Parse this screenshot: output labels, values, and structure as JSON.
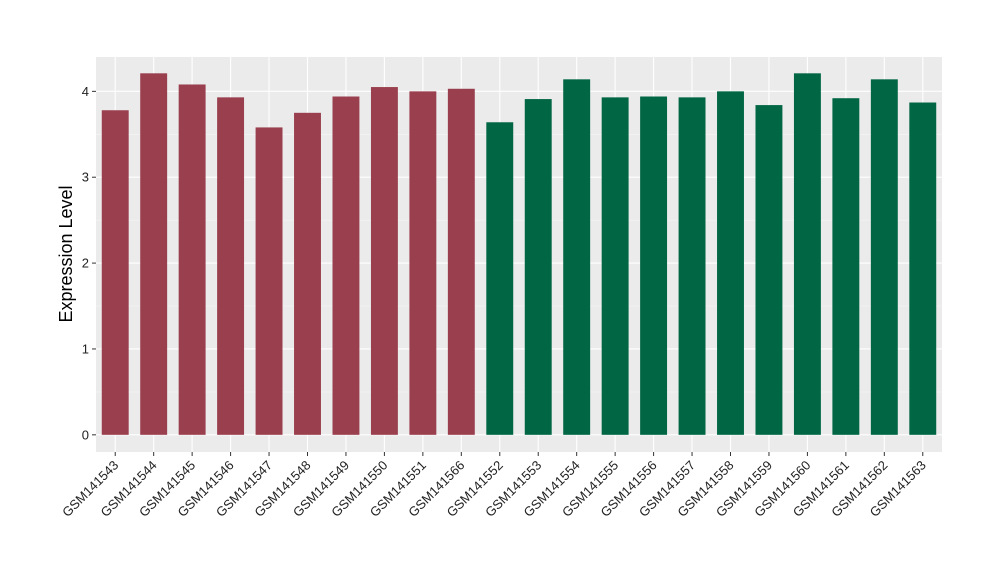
{
  "chart_data": {
    "type": "bar",
    "title": "",
    "xlabel": "",
    "ylabel": "Expression Level",
    "ylim": [
      -0.2,
      4.4
    ],
    "yticks": [
      0,
      1,
      2,
      3,
      4
    ],
    "grid": true,
    "background": "#EBEBEB",
    "categories": [
      "GSM141543",
      "GSM141544",
      "GSM141545",
      "GSM141546",
      "GSM141547",
      "GSM141548",
      "GSM141549",
      "GSM141550",
      "GSM141551",
      "GSM141566",
      "GSM141552",
      "GSM141553",
      "GSM141554",
      "GSM141555",
      "GSM141556",
      "GSM141557",
      "GSM141558",
      "GSM141559",
      "GSM141560",
      "GSM141561",
      "GSM141562",
      "GSM141563"
    ],
    "values": [
      3.78,
      4.21,
      4.08,
      3.93,
      3.58,
      3.75,
      3.94,
      4.05,
      4.0,
      4.03,
      3.64,
      3.91,
      4.14,
      3.93,
      3.94,
      3.93,
      4.0,
      3.84,
      4.21,
      3.92,
      4.14,
      3.87
    ],
    "groups": [
      0,
      0,
      0,
      0,
      0,
      0,
      0,
      0,
      0,
      0,
      1,
      1,
      1,
      1,
      1,
      1,
      1,
      1,
      1,
      1,
      1,
      1
    ],
    "group_colors": [
      "#9A3F4E",
      "#006644"
    ]
  }
}
